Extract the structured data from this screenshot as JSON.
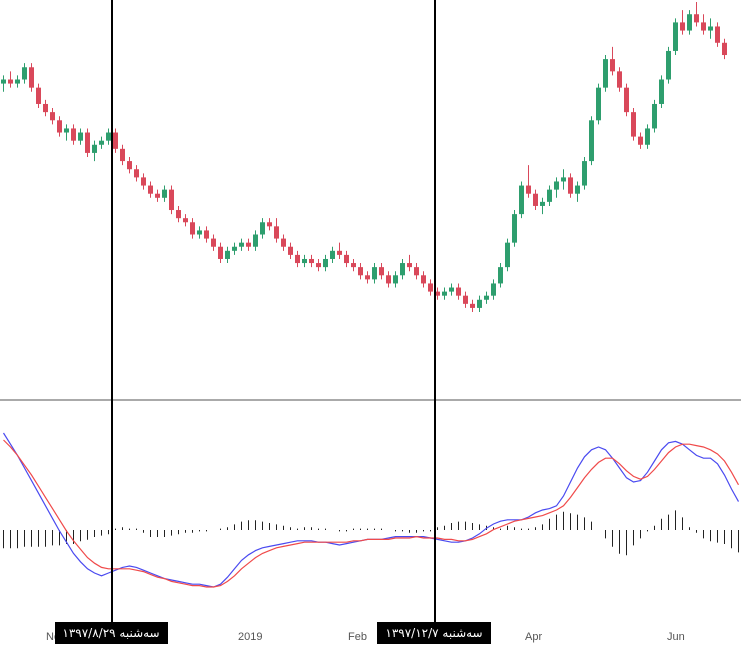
{
  "colors": {
    "up": "#2e9e6e",
    "down": "#d9485a",
    "macd": "#4a4af0",
    "signal": "#f04a4a",
    "histogram": "#222222",
    "crosshair": "#000000",
    "separator": "#555555",
    "label_bg": "#000000",
    "label_text": "#ffffff"
  },
  "chart_data": [
    {
      "type": "candlestick",
      "title": "",
      "xlabel": "",
      "ylabel": "",
      "x_axis_ticks": [
        "Nov",
        "2019",
        "Feb",
        "Apr",
        "Jun"
      ],
      "ohlc": [
        [
          86,
          88,
          84,
          87
        ],
        [
          87,
          89,
          85,
          86
        ],
        [
          86,
          88,
          85,
          87
        ],
        [
          87,
          91,
          86,
          90
        ],
        [
          90,
          91,
          84,
          85
        ],
        [
          85,
          86,
          80,
          81
        ],
        [
          81,
          82,
          78,
          79
        ],
        [
          79,
          80,
          76,
          77
        ],
        [
          77,
          78,
          73,
          74
        ],
        [
          74,
          76,
          72,
          75
        ],
        [
          75,
          76,
          71,
          72
        ],
        [
          72,
          75,
          71,
          74
        ],
        [
          74,
          75,
          68,
          69
        ],
        [
          69,
          72,
          67,
          71
        ],
        [
          71,
          73,
          70,
          72
        ],
        [
          72,
          75,
          71,
          74
        ],
        [
          74,
          75,
          69,
          70
        ],
        [
          70,
          71,
          66,
          67
        ],
        [
          67,
          68,
          64,
          65
        ],
        [
          65,
          66,
          62,
          63
        ],
        [
          63,
          64,
          60,
          61
        ],
        [
          61,
          62,
          58,
          59
        ],
        [
          59,
          60,
          57,
          58
        ],
        [
          58,
          61,
          57,
          60
        ],
        [
          60,
          61,
          54,
          55
        ],
        [
          55,
          56,
          52,
          53
        ],
        [
          53,
          54,
          51,
          52
        ],
        [
          52,
          53,
          48,
          49
        ],
        [
          49,
          51,
          48,
          50
        ],
        [
          50,
          51,
          47,
          48
        ],
        [
          48,
          49,
          45,
          46
        ],
        [
          46,
          47,
          42,
          43
        ],
        [
          43,
          46,
          42,
          45
        ],
        [
          45,
          47,
          44,
          46
        ],
        [
          46,
          48,
          45,
          47
        ],
        [
          47,
          48,
          45,
          46
        ],
        [
          46,
          50,
          45,
          49
        ],
        [
          49,
          53,
          48,
          52
        ],
        [
          52,
          53,
          50,
          51
        ],
        [
          51,
          53,
          47,
          48
        ],
        [
          48,
          49,
          45,
          46
        ],
        [
          46,
          47,
          43,
          44
        ],
        [
          44,
          45,
          41,
          42
        ],
        [
          42,
          44,
          41,
          43
        ],
        [
          43,
          44,
          41,
          42
        ],
        [
          42,
          43,
          40,
          41
        ],
        [
          41,
          44,
          40,
          43
        ],
        [
          43,
          46,
          42,
          45
        ],
        [
          45,
          47,
          43,
          44
        ],
        [
          44,
          45,
          41,
          42
        ],
        [
          42,
          43,
          40,
          41
        ],
        [
          41,
          42,
          38,
          39
        ],
        [
          39,
          40,
          37,
          38
        ],
        [
          38,
          42,
          37,
          41
        ],
        [
          41,
          42,
          38,
          39
        ],
        [
          39,
          40,
          36,
          37
        ],
        [
          37,
          40,
          36,
          39
        ],
        [
          39,
          43,
          38,
          42
        ],
        [
          42,
          44,
          40,
          41
        ],
        [
          41,
          42,
          38,
          39
        ],
        [
          39,
          40,
          36,
          37
        ],
        [
          37,
          38,
          34,
          35
        ],
        [
          35,
          36,
          33,
          34
        ],
        [
          34,
          36,
          33,
          35
        ],
        [
          35,
          37,
          34,
          36
        ],
        [
          36,
          37,
          33,
          34
        ],
        [
          34,
          35,
          31,
          32
        ],
        [
          32,
          33,
          30,
          31
        ],
        [
          31,
          34,
          30,
          33
        ],
        [
          33,
          35,
          32,
          34
        ],
        [
          34,
          38,
          33,
          37
        ],
        [
          37,
          42,
          36,
          41
        ],
        [
          41,
          48,
          40,
          47
        ],
        [
          47,
          55,
          46,
          54
        ],
        [
          54,
          62,
          53,
          61
        ],
        [
          61,
          66,
          58,
          59
        ],
        [
          59,
          60,
          55,
          56
        ],
        [
          56,
          58,
          54,
          57
        ],
        [
          57,
          61,
          56,
          60
        ],
        [
          60,
          63,
          58,
          62
        ],
        [
          62,
          65,
          60,
          63
        ],
        [
          63,
          64,
          58,
          59
        ],
        [
          59,
          62,
          57,
          61
        ],
        [
          61,
          68,
          60,
          67
        ],
        [
          67,
          78,
          66,
          77
        ],
        [
          77,
          86,
          76,
          85
        ],
        [
          85,
          93,
          84,
          92
        ],
        [
          92,
          95,
          88,
          89
        ],
        [
          89,
          90,
          84,
          85
        ],
        [
          85,
          86,
          78,
          79
        ],
        [
          79,
          80,
          72,
          73
        ],
        [
          73,
          74,
          70,
          71
        ],
        [
          71,
          76,
          70,
          75
        ],
        [
          75,
          82,
          74,
          81
        ],
        [
          81,
          88,
          80,
          87
        ],
        [
          87,
          95,
          86,
          94
        ],
        [
          94,
          102,
          93,
          101
        ],
        [
          101,
          104,
          98,
          99
        ],
        [
          99,
          104,
          98,
          103
        ],
        [
          103,
          106,
          100,
          101
        ],
        [
          101,
          103,
          98,
          99
        ],
        [
          99,
          102,
          97,
          100
        ],
        [
          100,
          101,
          95,
          96
        ],
        [
          96,
          97,
          92,
          93
        ]
      ]
    },
    {
      "type": "line",
      "title": "",
      "indicator": "MACD",
      "series": [
        {
          "role": "macd",
          "values": [
            8.0,
            7.2,
            6.4,
            5.5,
            4.6,
            3.7,
            2.8,
            1.9,
            1.0,
            0.2,
            -0.6,
            -1.2,
            -1.7,
            -2.0,
            -2.2,
            -2.0,
            -1.8,
            -1.6,
            -1.5,
            -1.6,
            -1.8,
            -2.0,
            -2.2,
            -2.4,
            -2.5,
            -2.6,
            -2.7,
            -2.8,
            -2.8,
            -2.9,
            -3.0,
            -2.8,
            -2.3,
            -1.7,
            -1.1,
            -0.7,
            -0.4,
            -0.2,
            -0.1,
            -0.0,
            0.1,
            0.2,
            0.3,
            0.3,
            0.3,
            0.2,
            0.2,
            0.1,
            0.0,
            0.1,
            0.2,
            0.3,
            0.4,
            0.4,
            0.4,
            0.5,
            0.6,
            0.6,
            0.6,
            0.6,
            0.6,
            0.5,
            0.4,
            0.3,
            0.2,
            0.2,
            0.3,
            0.5,
            0.8,
            1.2,
            1.5,
            1.7,
            1.8,
            1.8,
            1.8,
            2.0,
            2.3,
            2.5,
            2.6,
            2.8,
            3.5,
            4.5,
            5.5,
            6.3,
            6.8,
            7.0,
            6.8,
            6.2,
            5.5,
            4.8,
            4.5,
            4.6,
            5.2,
            6.0,
            6.8,
            7.3,
            7.4,
            7.2,
            6.8,
            6.4,
            6.2,
            6.2,
            5.8,
            5.0,
            4.0,
            3.1
          ]
        },
        {
          "role": "signal",
          "values": [
            7.5,
            7.0,
            6.4,
            5.7,
            5.0,
            4.2,
            3.4,
            2.6,
            1.8,
            1.0,
            0.3,
            -0.3,
            -0.9,
            -1.3,
            -1.6,
            -1.7,
            -1.7,
            -1.7,
            -1.7,
            -1.8,
            -1.9,
            -2.1,
            -2.3,
            -2.4,
            -2.6,
            -2.7,
            -2.8,
            -2.9,
            -2.9,
            -3.0,
            -3.0,
            -2.9,
            -2.6,
            -2.2,
            -1.7,
            -1.3,
            -0.9,
            -0.6,
            -0.4,
            -0.2,
            -0.1,
            0.0,
            0.1,
            0.2,
            0.2,
            0.2,
            0.2,
            0.2,
            0.2,
            0.2,
            0.3,
            0.3,
            0.4,
            0.4,
            0.4,
            0.4,
            0.5,
            0.5,
            0.5,
            0.6,
            0.5,
            0.5,
            0.5,
            0.4,
            0.4,
            0.3,
            0.3,
            0.4,
            0.6,
            0.8,
            1.1,
            1.3,
            1.5,
            1.7,
            1.8,
            1.9,
            2.0,
            2.1,
            2.3,
            2.5,
            2.8,
            3.4,
            4.1,
            4.8,
            5.4,
            5.9,
            6.2,
            6.2,
            5.8,
            5.3,
            4.9,
            4.7,
            4.9,
            5.4,
            6.0,
            6.6,
            7.0,
            7.2,
            7.2,
            7.1,
            7.0,
            6.8,
            6.5,
            6.0,
            5.2,
            4.3
          ]
        }
      ],
      "histogram": [
        -1.3,
        -1.3,
        -1.3,
        -1.2,
        -1.2,
        -1.2,
        -1.2,
        -1.1,
        -1.1,
        -1.0,
        -1.0,
        -0.8,
        -0.7,
        -0.5,
        -0.4,
        -0.3,
        0.1,
        0.2,
        0.1,
        0.1,
        -0.2,
        -0.5,
        -0.5,
        -0.5,
        -0.4,
        -0.3,
        -0.2,
        -0.2,
        -0.1,
        -0.1,
        0.0,
        0.1,
        0.2,
        0.4,
        0.6,
        0.7,
        0.7,
        0.6,
        0.5,
        0.4,
        0.3,
        0.2,
        0.1,
        0.2,
        0.2,
        0.1,
        0.1,
        0.0,
        -0.1,
        -0.1,
        0.1,
        0.1,
        0.1,
        0.1,
        0.1,
        0.0,
        -0.1,
        -0.1,
        -0.2,
        -0.2,
        -0.1,
        -0.1,
        0.2,
        0.3,
        0.5,
        0.6,
        0.6,
        0.5,
        0.4,
        0.3,
        0.2,
        0.1,
        0.3,
        0.2,
        0.1,
        0.1,
        0.2,
        0.4,
        0.8,
        1.1,
        1.3,
        1.2,
        1.1,
        0.9,
        0.6,
        0.0,
        -0.6,
        -1.2,
        -1.7,
        -1.8,
        -1.1,
        -0.6,
        -0.1,
        0.3,
        0.8,
        1.1,
        1.4,
        0.9,
        0.2,
        -0.2,
        -0.6,
        -0.8,
        -0.9,
        -1.0,
        -1.3,
        -1.6
      ]
    }
  ],
  "cursor_labels": {
    "left": "سه‌شنبه ۱۳۹۷/۸/۲۹",
    "right": "سه‌شنبه ۱۳۹۷/۱۲/۷"
  }
}
